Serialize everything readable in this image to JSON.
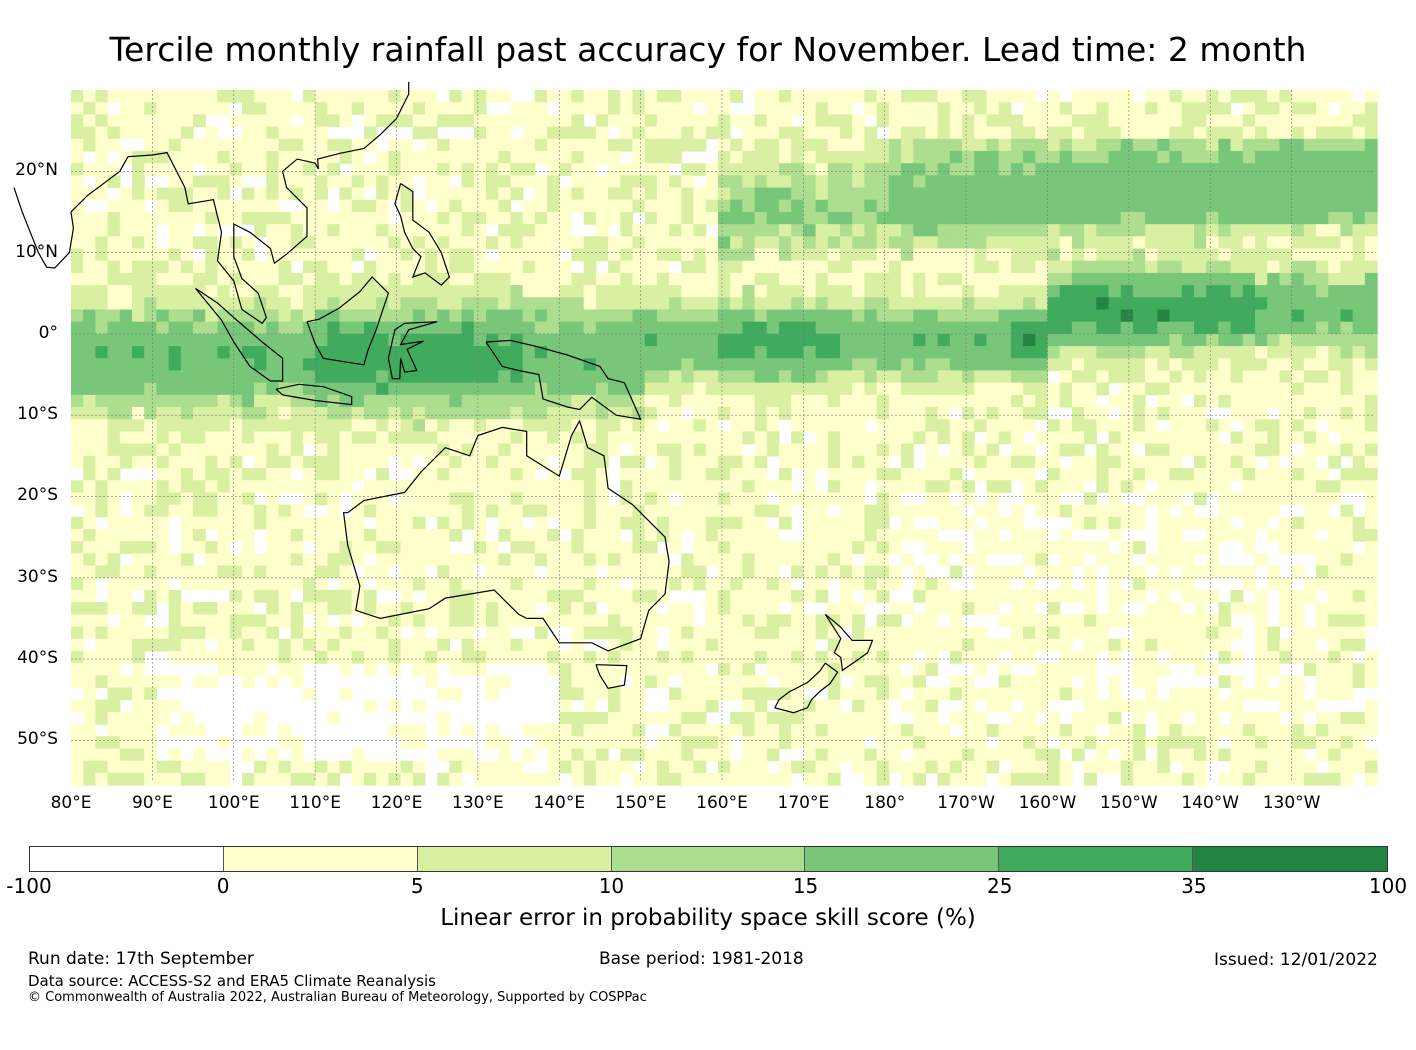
{
  "title": "Tercile monthly rainfall past accuracy for November. Lead time: 2 month",
  "map": {
    "lat_labels": [
      "20°N",
      "10°N",
      "0°",
      "10°S",
      "20°S",
      "30°S",
      "40°S",
      "50°S"
    ],
    "lon_labels": [
      "80°E",
      "90°E",
      "100°E",
      "110°E",
      "120°E",
      "130°E",
      "140°E",
      "150°E",
      "160°E",
      "170°E",
      "180°",
      "170°W",
      "160°W",
      "150°W",
      "140°W",
      "130°W"
    ],
    "lat_range": [
      -55,
      30
    ],
    "lon_range": [
      80,
      240
    ]
  },
  "colorbar": {
    "ticks": [
      "-100",
      "0",
      "5",
      "10",
      "15",
      "25",
      "35",
      "100"
    ],
    "colors": [
      "#ffffff",
      "#ffffcc",
      "#d9f0a3",
      "#addd8e",
      "#78c679",
      "#41ab5d",
      "#238443"
    ],
    "label": "Linear error in probability space skill score (%)"
  },
  "footer": {
    "run_date": "Run date: 17th September",
    "base_period": "Base period: 1981-2018",
    "issued": "Issued: 12/01/2022",
    "data_source": "Data source: ACCESS-S2 and ERA5 Climate Reanalysis",
    "copyright": "© Commonwealth of Australia 2022, Australian Bureau of Meteorology, Supported by COSPPac"
  }
}
